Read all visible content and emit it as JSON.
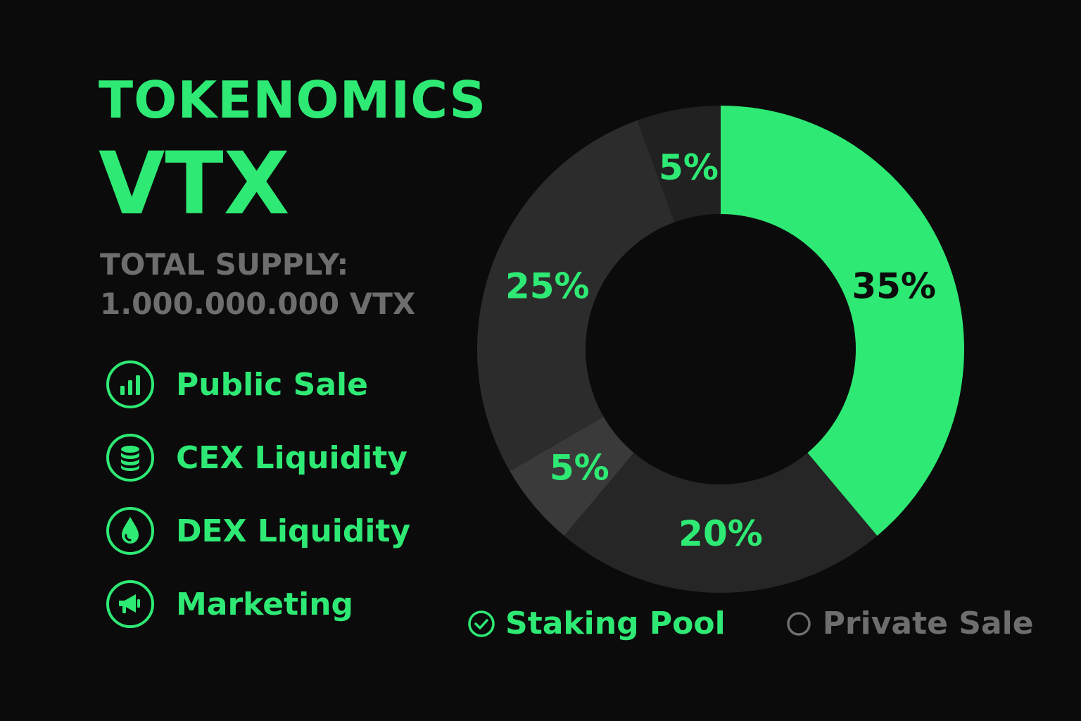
{
  "header": {
    "title": "TOKENOMICS",
    "token": "VTX",
    "supply_label": "TOTAL SUPPLY:",
    "supply_value": "1.000.000.000 VTX"
  },
  "legend": {
    "items": [
      {
        "label": "Public Sale",
        "icon": "bar-chart-icon"
      },
      {
        "label": "CEX Liquidity",
        "icon": "database-icon"
      },
      {
        "label": "DEX Liquidity",
        "icon": "droplet-icon"
      },
      {
        "label": "Marketing",
        "icon": "megaphone-icon"
      }
    ],
    "bottom": [
      {
        "label": "Staking Pool",
        "icon": "check-circle-icon",
        "checked": true
      },
      {
        "label": "Private Sale",
        "icon": "empty-circle-icon",
        "checked": false
      }
    ]
  },
  "colors": {
    "accent": "#2eea74",
    "background": "#0b0b0b",
    "muted_text": "#6e6e6e",
    "dark_text": "#0b0b0b"
  },
  "chart_data": {
    "type": "pie",
    "donut": true,
    "categories": [
      "",
      "",
      "",
      "",
      ""
    ],
    "values": [
      35,
      20,
      5,
      25,
      5
    ],
    "labels": [
      "35%",
      "20%",
      "5%",
      "25%",
      "5%"
    ],
    "colors": [
      "#2eea74",
      "#262626",
      "#3a3a3a",
      "#2c2c2c",
      "#212121"
    ],
    "label_colors": [
      "#0b0b0b",
      "#2eea74",
      "#2eea74",
      "#2eea74",
      "#2eea74"
    ],
    "start": "top",
    "direction": "clockwise"
  }
}
